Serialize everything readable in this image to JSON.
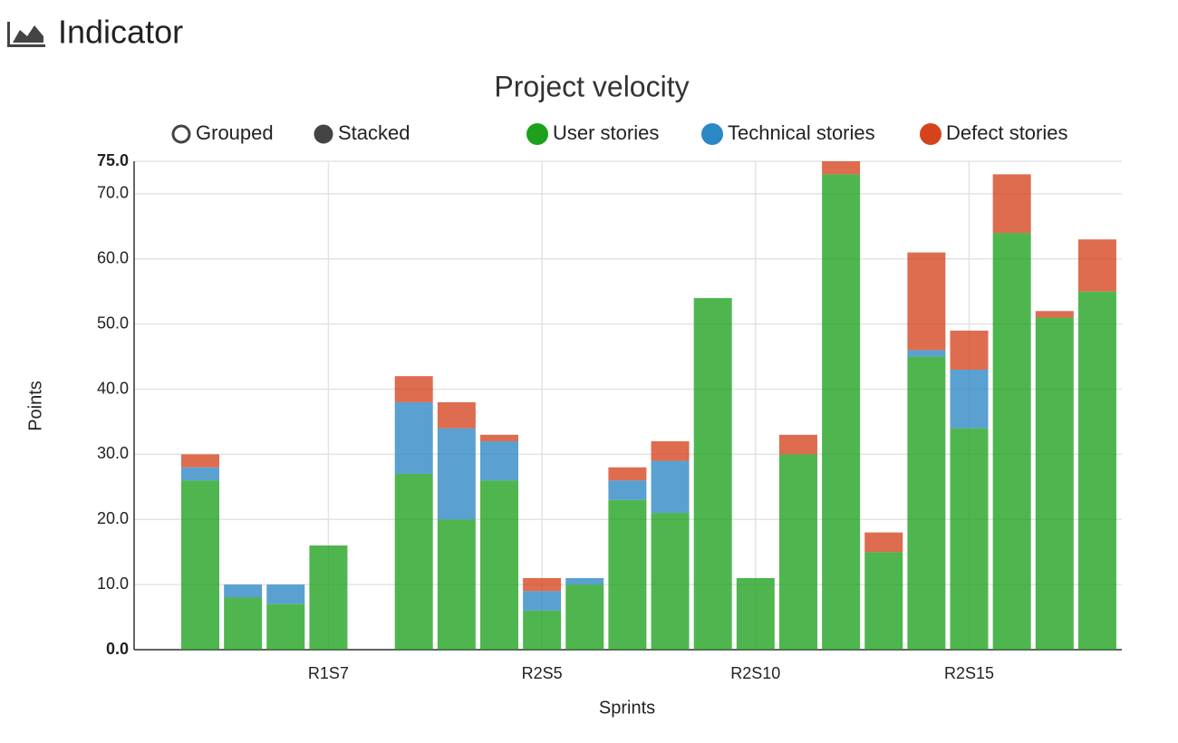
{
  "header": {
    "title": "Indicator"
  },
  "chart_data": {
    "type": "stacked_bar",
    "title": "Project velocity",
    "modes": [
      "Grouped",
      "Stacked"
    ],
    "mode": "Stacked",
    "x_label": "Sprints",
    "y_label": "Points",
    "categories": [
      null,
      null,
      null,
      "R1S7",
      null,
      null,
      null,
      null,
      "R2S5",
      null,
      null,
      null,
      null,
      "R2S10",
      null,
      null,
      null,
      null,
      "R2S15",
      null,
      null,
      null
    ],
    "series": [
      {
        "name": "User stories",
        "color": "#1da11d",
        "values": [
          26,
          8,
          7,
          16,
          0,
          27,
          20,
          26,
          6,
          10,
          23,
          21,
          54,
          11,
          30,
          73,
          15,
          45,
          34,
          64,
          51,
          55
        ]
      },
      {
        "name": "Technical stories",
        "color": "#2c87c5",
        "values": [
          2,
          2,
          3,
          0,
          0,
          11,
          14,
          6,
          3,
          1,
          3,
          8,
          0,
          0,
          0,
          0,
          0,
          1,
          9,
          0,
          0,
          0
        ]
      },
      {
        "name": "Defect stories",
        "color": "#d5431d",
        "values": [
          2,
          0,
          0,
          0,
          0,
          4,
          4,
          1,
          2,
          0,
          2,
          3,
          0,
          0,
          3,
          2,
          3,
          15,
          6,
          9,
          1,
          8
        ]
      }
    ],
    "ylim": [
      0,
      75
    ],
    "yticks": [
      {
        "value": 0,
        "label": "0.0"
      },
      {
        "value": 10,
        "label": "10.0"
      },
      {
        "value": 20,
        "label": "20.0"
      },
      {
        "value": 30,
        "label": "30.0"
      },
      {
        "value": 40,
        "label": "40.0"
      },
      {
        "value": 50,
        "label": "50.0"
      },
      {
        "value": 60,
        "label": "60.0"
      },
      {
        "value": 70,
        "label": "70.0"
      },
      {
        "value": 75,
        "label": "75.0"
      }
    ],
    "grid": true
  }
}
